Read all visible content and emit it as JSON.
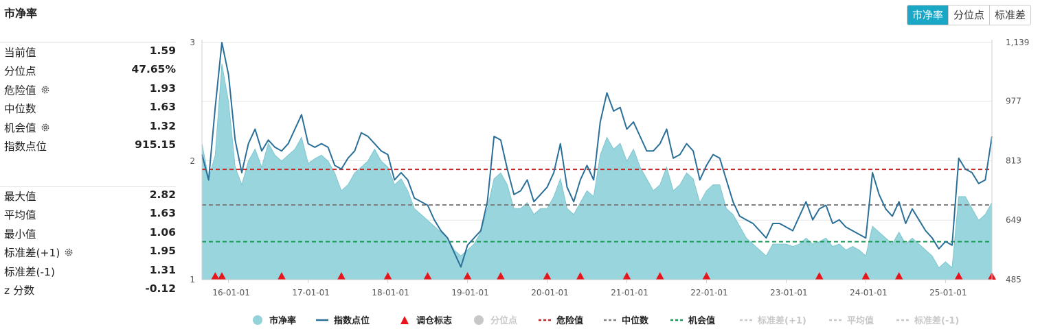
{
  "page": {
    "title": "市净率"
  },
  "tabs": [
    {
      "label": "市净率",
      "active": true
    },
    {
      "label": "分位点",
      "active": false
    },
    {
      "label": "标准差",
      "active": false
    }
  ],
  "stats": {
    "current": {
      "label": "当前值",
      "value": "1.59"
    },
    "percentile": {
      "label": "分位点",
      "value": "47.65%"
    },
    "danger": {
      "label": "危险值",
      "value": "1.93"
    },
    "median": {
      "label": "中位数",
      "value": "1.63"
    },
    "opportunity": {
      "label": "机会值",
      "value": "1.32"
    },
    "index_point": {
      "label": "指数点位",
      "value": "915.15"
    },
    "max": {
      "label": "最大值",
      "value": "2.82"
    },
    "mean": {
      "label": "平均值",
      "value": "1.63"
    },
    "min": {
      "label": "最小值",
      "value": "1.06"
    },
    "std_plus": {
      "label": "标准差(+1)",
      "value": "1.95"
    },
    "std_minus": {
      "label": "标准差(-1)",
      "value": "1.31"
    },
    "zscore": {
      "label": "z 分数",
      "value": "-0.12"
    }
  },
  "colors": {
    "pb_fill": "#94d3da",
    "pb_stroke": "#7fc6cf",
    "index_line": "#2a6f97",
    "marker": "#e8141c",
    "danger": "#c62828",
    "median": "#7f7f7f",
    "opportunity": "#1a9a54",
    "tab_active": "#1ba7c6"
  },
  "chart_data": {
    "type": "area",
    "x_tick_labels": [
      "16-01-01",
      "17-01-01",
      "18-01-01",
      "19-01-01",
      "20-01-01",
      "21-01-01",
      "22-01-01",
      "23-01-01",
      "24-01-01",
      "25-01-01"
    ],
    "x_range": [
      "2015-09",
      "2025-08"
    ],
    "y_left": {
      "ticks": [
        "1",
        "2",
        "3"
      ],
      "range": [
        1,
        3
      ]
    },
    "y_right": {
      "ticks": [
        "485",
        "649",
        "813",
        "977",
        "1,139"
      ],
      "range": [
        485,
        1139
      ]
    },
    "reference_lines": {
      "danger": 1.93,
      "median": 1.63,
      "opportunity": 1.32
    },
    "series": [
      {
        "name": "市净率",
        "axis": "left",
        "x": [
          "2015-09",
          "2015-10",
          "2015-11",
          "2015-12",
          "2016-01",
          "2016-02",
          "2016-03",
          "2016-04",
          "2016-05",
          "2016-06",
          "2016-07",
          "2016-08",
          "2016-09",
          "2016-10",
          "2016-11",
          "2016-12",
          "2017-01",
          "2017-02",
          "2017-03",
          "2017-04",
          "2017-05",
          "2017-06",
          "2017-07",
          "2017-08",
          "2017-09",
          "2017-10",
          "2017-11",
          "2017-12",
          "2018-01",
          "2018-02",
          "2018-03",
          "2018-04",
          "2018-05",
          "2018-06",
          "2018-07",
          "2018-08",
          "2018-09",
          "2018-10",
          "2018-11",
          "2018-12",
          "2019-01",
          "2019-02",
          "2019-03",
          "2019-04",
          "2019-05",
          "2019-06",
          "2019-07",
          "2019-08",
          "2019-09",
          "2019-10",
          "2019-11",
          "2019-12",
          "2020-01",
          "2020-02",
          "2020-03",
          "2020-04",
          "2020-05",
          "2020-06",
          "2020-07",
          "2020-08",
          "2020-09",
          "2020-10",
          "2020-11",
          "2020-12",
          "2021-01",
          "2021-02",
          "2021-03",
          "2021-04",
          "2021-05",
          "2021-06",
          "2021-07",
          "2021-08",
          "2021-09",
          "2021-10",
          "2021-11",
          "2021-12",
          "2022-01",
          "2022-02",
          "2022-03",
          "2022-04",
          "2022-05",
          "2022-06",
          "2022-07",
          "2022-08",
          "2022-09",
          "2022-10",
          "2022-11",
          "2022-12",
          "2023-01",
          "2023-02",
          "2023-03",
          "2023-04",
          "2023-05",
          "2023-06",
          "2023-07",
          "2023-08",
          "2023-09",
          "2023-10",
          "2023-11",
          "2023-12",
          "2024-01",
          "2024-02",
          "2024-03",
          "2024-04",
          "2024-05",
          "2024-06",
          "2024-07",
          "2024-08",
          "2024-09",
          "2024-10",
          "2024-11",
          "2024-12",
          "2025-01",
          "2025-02",
          "2025-03",
          "2025-04",
          "2025-05",
          "2025-06",
          "2025-07",
          "2025-08"
        ],
        "values": [
          2.15,
          1.85,
          2.05,
          2.82,
          2.5,
          1.95,
          1.8,
          2.0,
          2.1,
          1.95,
          2.15,
          2.05,
          2.0,
          2.05,
          2.1,
          2.2,
          1.98,
          2.02,
          2.05,
          2.0,
          1.9,
          1.75,
          1.8,
          1.9,
          1.95,
          2.0,
          2.1,
          2.0,
          1.95,
          1.8,
          1.85,
          1.75,
          1.6,
          1.55,
          1.5,
          1.45,
          1.4,
          1.35,
          1.25,
          1.2,
          1.25,
          1.3,
          1.4,
          1.6,
          1.85,
          1.9,
          1.8,
          1.6,
          1.6,
          1.65,
          1.55,
          1.6,
          1.6,
          1.7,
          1.85,
          1.6,
          1.55,
          1.65,
          1.75,
          1.7,
          2.05,
          2.2,
          2.1,
          2.15,
          2.0,
          2.1,
          1.95,
          1.85,
          1.75,
          1.8,
          1.95,
          1.75,
          1.8,
          1.9,
          1.85,
          1.65,
          1.75,
          1.8,
          1.8,
          1.6,
          1.55,
          1.45,
          1.35,
          1.3,
          1.25,
          1.2,
          1.3,
          1.3,
          1.3,
          1.28,
          1.3,
          1.35,
          1.3,
          1.32,
          1.35,
          1.28,
          1.3,
          1.25,
          1.28,
          1.25,
          1.2,
          1.45,
          1.4,
          1.35,
          1.3,
          1.4,
          1.3,
          1.35,
          1.3,
          1.25,
          1.2,
          1.1,
          1.15,
          1.1,
          1.7,
          1.7,
          1.6,
          1.5,
          1.55,
          1.65
        ]
      },
      {
        "name": "指数点位",
        "axis": "right",
        "x": [
          "2015-09",
          "2015-10",
          "2015-11",
          "2015-12",
          "2016-01",
          "2016-02",
          "2016-03",
          "2016-04",
          "2016-05",
          "2016-06",
          "2016-07",
          "2016-08",
          "2016-09",
          "2016-10",
          "2016-11",
          "2016-12",
          "2017-01",
          "2017-02",
          "2017-03",
          "2017-04",
          "2017-05",
          "2017-06",
          "2017-07",
          "2017-08",
          "2017-09",
          "2017-10",
          "2017-11",
          "2017-12",
          "2018-01",
          "2018-02",
          "2018-03",
          "2018-04",
          "2018-05",
          "2018-06",
          "2018-07",
          "2018-08",
          "2018-09",
          "2018-10",
          "2018-11",
          "2018-12",
          "2019-01",
          "2019-02",
          "2019-03",
          "2019-04",
          "2019-05",
          "2019-06",
          "2019-07",
          "2019-08",
          "2019-09",
          "2019-10",
          "2019-11",
          "2019-12",
          "2020-01",
          "2020-02",
          "2020-03",
          "2020-04",
          "2020-05",
          "2020-06",
          "2020-07",
          "2020-08",
          "2020-09",
          "2020-10",
          "2020-11",
          "2020-12",
          "2021-01",
          "2021-02",
          "2021-03",
          "2021-04",
          "2021-05",
          "2021-06",
          "2021-07",
          "2021-08",
          "2021-09",
          "2021-10",
          "2021-11",
          "2021-12",
          "2022-01",
          "2022-02",
          "2022-03",
          "2022-04",
          "2022-05",
          "2022-06",
          "2022-07",
          "2022-08",
          "2022-09",
          "2022-10",
          "2022-11",
          "2022-12",
          "2023-01",
          "2023-02",
          "2023-03",
          "2023-04",
          "2023-05",
          "2023-06",
          "2023-07",
          "2023-08",
          "2023-09",
          "2023-10",
          "2023-11",
          "2023-12",
          "2024-01",
          "2024-02",
          "2024-03",
          "2024-04",
          "2024-05",
          "2024-06",
          "2024-07",
          "2024-08",
          "2024-09",
          "2024-10",
          "2024-11",
          "2024-12",
          "2025-01",
          "2025-02",
          "2025-03",
          "2025-04",
          "2025-05",
          "2025-06",
          "2025-07",
          "2025-08"
        ],
        "values": [
          830,
          760,
          960,
          1139,
          1050,
          870,
          780,
          860,
          900,
          840,
          870,
          850,
          840,
          860,
          900,
          940,
          860,
          850,
          860,
          850,
          800,
          790,
          820,
          840,
          890,
          880,
          860,
          840,
          830,
          760,
          780,
          760,
          710,
          700,
          690,
          650,
          620,
          600,
          560,
          520,
          580,
          600,
          620,
          700,
          880,
          870,
          790,
          720,
          730,
          760,
          700,
          720,
          740,
          780,
          860,
          740,
          700,
          760,
          800,
          760,
          920,
          1000,
          950,
          960,
          900,
          920,
          880,
          840,
          840,
          860,
          900,
          820,
          830,
          860,
          840,
          760,
          800,
          830,
          820,
          760,
          700,
          660,
          650,
          640,
          620,
          600,
          640,
          640,
          630,
          620,
          660,
          700,
          650,
          680,
          690,
          640,
          650,
          630,
          620,
          610,
          600,
          780,
          720,
          680,
          660,
          700,
          640,
          680,
          650,
          620,
          600,
          570,
          590,
          580,
          820,
          790,
          780,
          750,
          760,
          880
        ]
      }
    ],
    "rebalance_markers": [
      "2015-11",
      "2015-12",
      "2016-09",
      "2017-06",
      "2018-01",
      "2018-07",
      "2019-01",
      "2019-06",
      "2020-01",
      "2020-06",
      "2021-01",
      "2021-06",
      "2022-01",
      "2023-06",
      "2024-01",
      "2024-06",
      "2025-03",
      "2025-08"
    ],
    "legend": [
      {
        "label": "市净率",
        "kind": "circle",
        "color": "#94d3da",
        "active": true
      },
      {
        "label": "指数点位",
        "kind": "line",
        "color": "#2a6f97",
        "active": true
      },
      {
        "label": "调仓标志",
        "kind": "triangle",
        "color": "#e8141c",
        "active": true
      },
      {
        "label": "分位点",
        "kind": "circle",
        "color": "#c8c8c8",
        "active": false
      },
      {
        "label": "危险值",
        "kind": "dash",
        "color": "#c62828",
        "active": true
      },
      {
        "label": "中位数",
        "kind": "dash",
        "color": "#7f7f7f",
        "active": true
      },
      {
        "label": "机会值",
        "kind": "dash",
        "color": "#1a9a54",
        "active": true
      },
      {
        "label": "标准差(+1)",
        "kind": "dash",
        "color": "#c8c8c8",
        "active": false
      },
      {
        "label": "平均值",
        "kind": "dash",
        "color": "#c8c8c8",
        "active": false
      },
      {
        "label": "标准差(-1)",
        "kind": "dash",
        "color": "#c8c8c8",
        "active": false
      }
    ]
  }
}
